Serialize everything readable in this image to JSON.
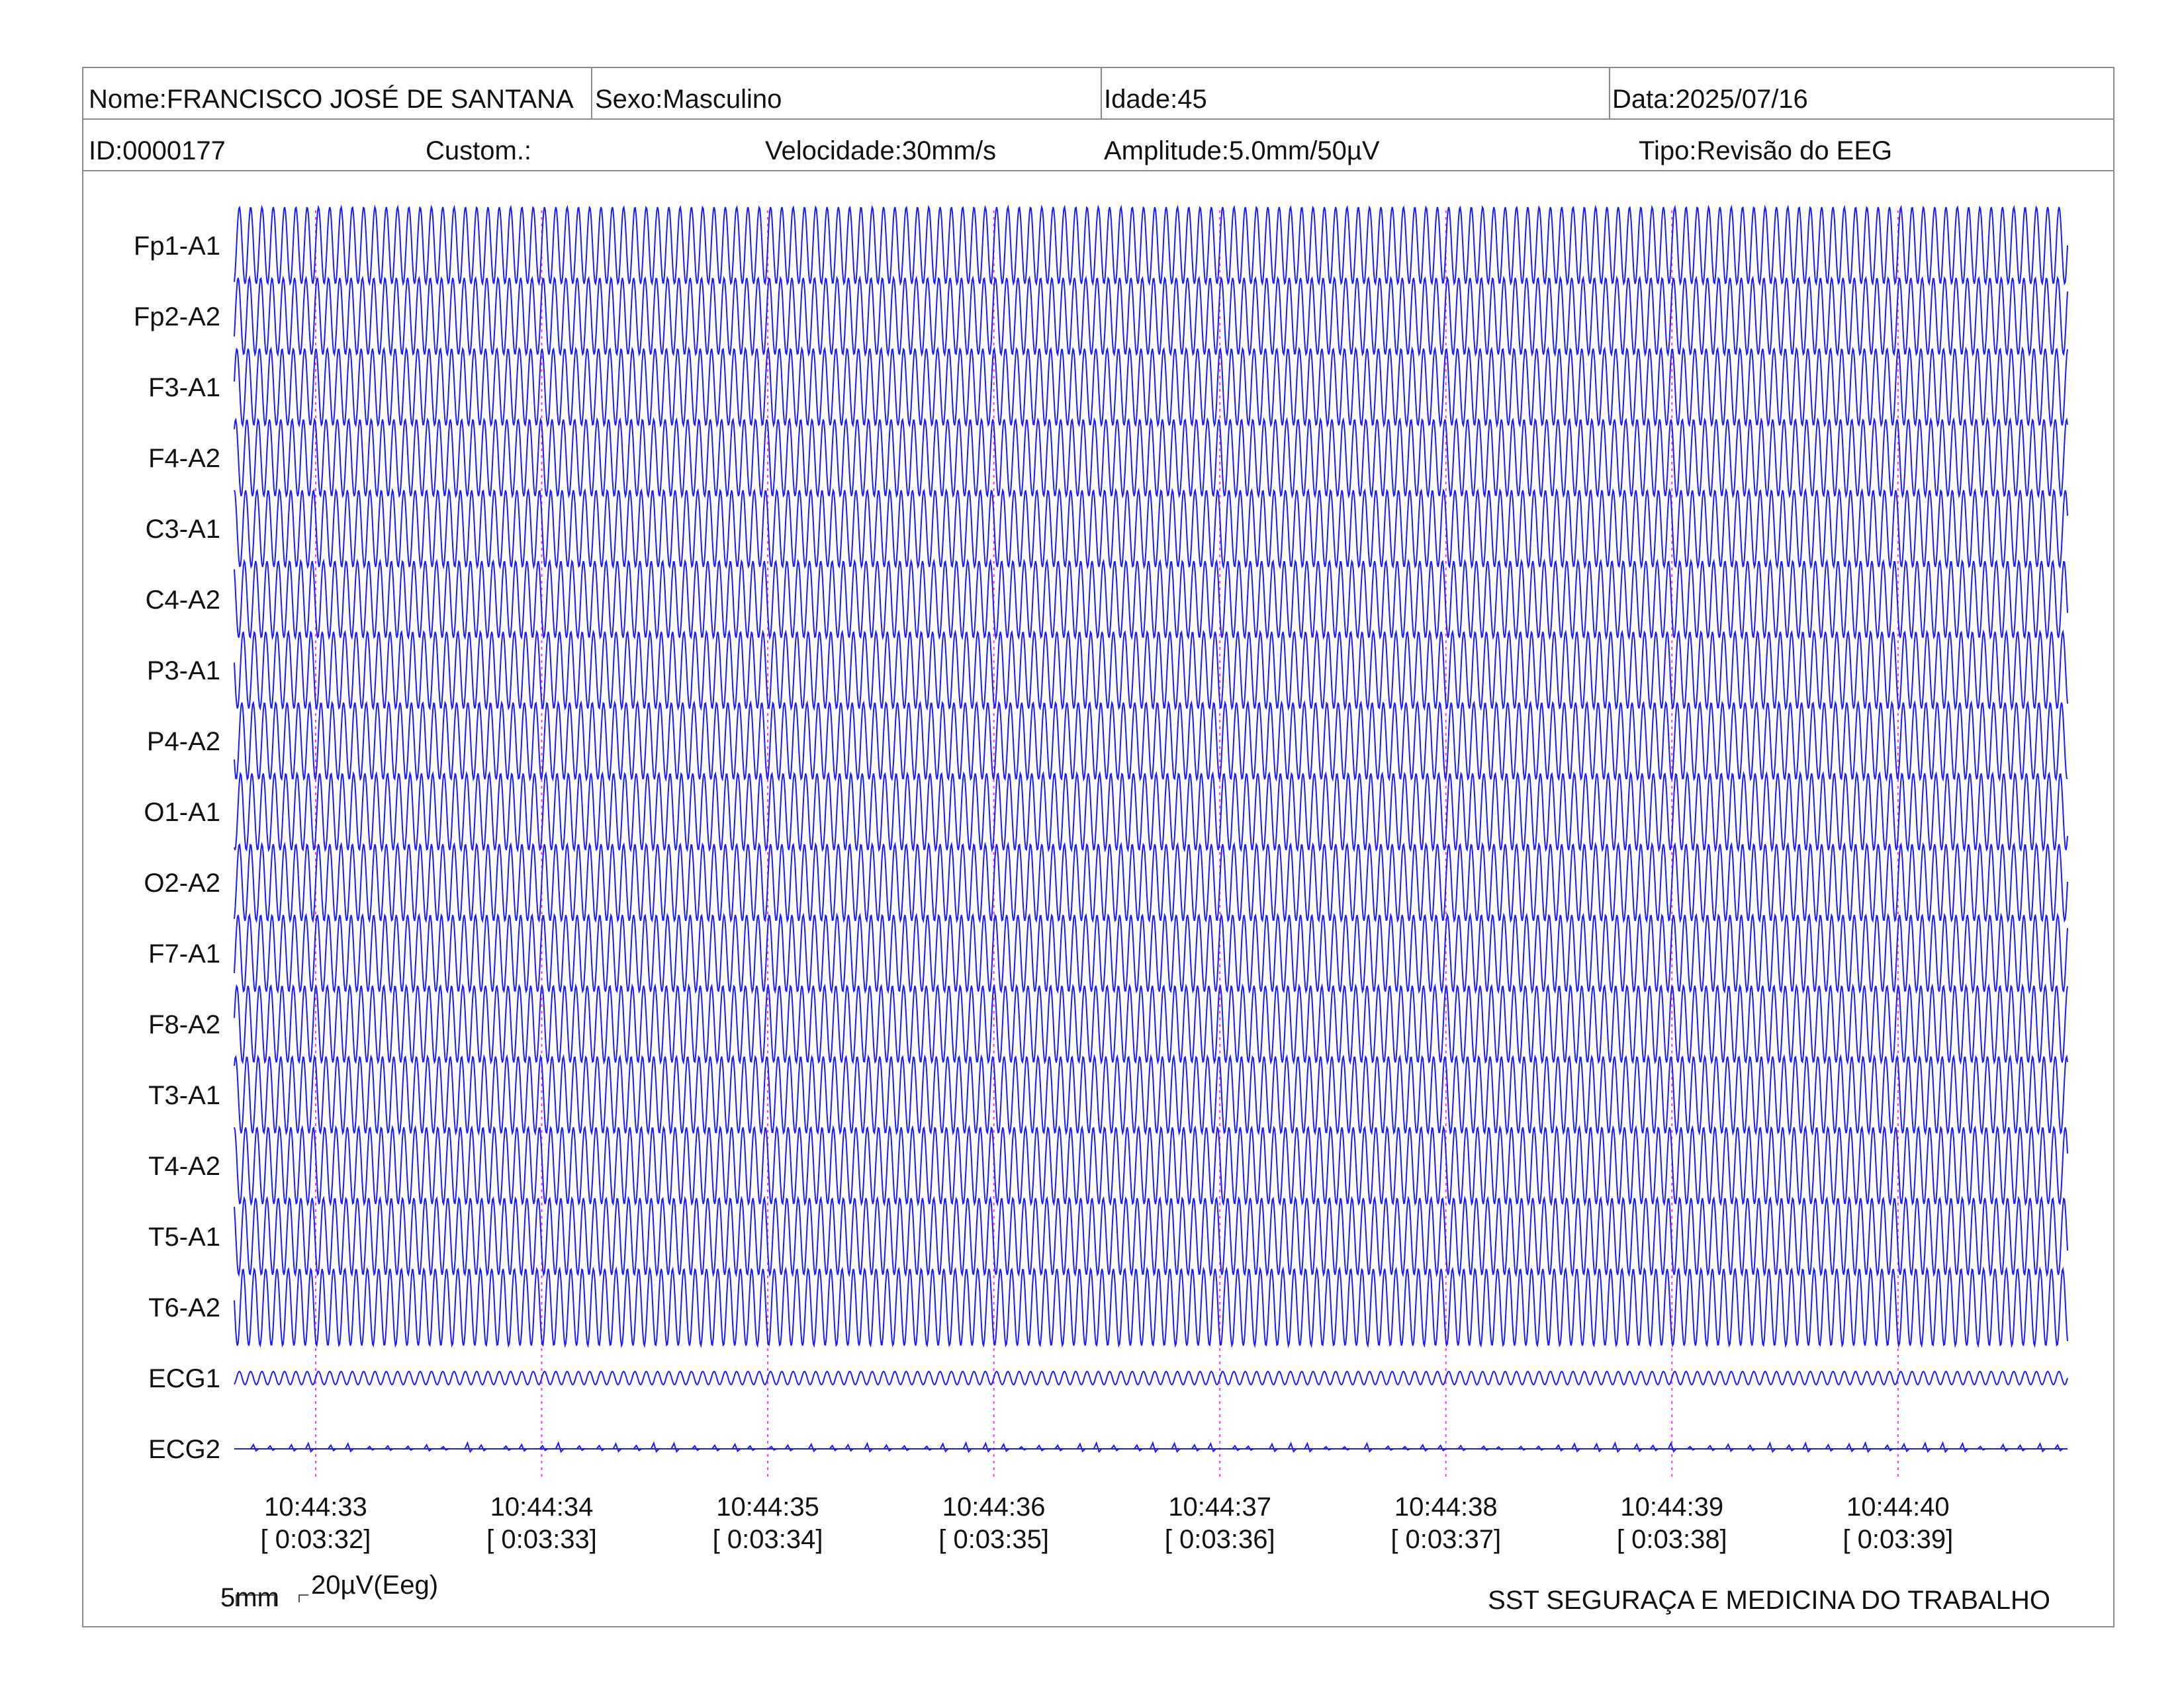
{
  "header": {
    "nome": "Nome:FRANCISCO JOSÉ DE SANTANA",
    "sexo": "Sexo:Masculino",
    "idade": "Idade:45",
    "data": "Data:2025/07/16",
    "id": "ID:0000177",
    "custom": "Custom.:",
    "velocidade": "Velocidade:30mm/s",
    "amplitude": "Amplitude:5.0mm/50µV",
    "tipo": "Tipo:Revisão do EEG"
  },
  "chart_data": {
    "type": "line",
    "title": "",
    "channels": [
      "Fp1-A1",
      "Fp2-A2",
      "F3-A1",
      "F4-A2",
      "C3-A1",
      "C4-A2",
      "P3-A1",
      "P4-A2",
      "O1-A1",
      "O2-A2",
      "F7-A1",
      "F8-A2",
      "T3-A1",
      "T4-A2",
      "T5-A1",
      "T6-A2",
      "ECG1",
      "ECG2"
    ],
    "time_ticks": [
      {
        "clock": "10:44:33",
        "elapsed": "[ 0:03:32]",
        "t": 0
      },
      {
        "clock": "10:44:34",
        "elapsed": "[ 0:03:33]",
        "t": 1
      },
      {
        "clock": "10:44:35",
        "elapsed": "[ 0:03:34]",
        "t": 2
      },
      {
        "clock": "10:44:36",
        "elapsed": "[ 0:03:35]",
        "t": 3
      },
      {
        "clock": "10:44:37",
        "elapsed": "[ 0:03:36]",
        "t": 4
      },
      {
        "clock": "10:44:38",
        "elapsed": "[ 0:03:37]",
        "t": 5
      },
      {
        "clock": "10:44:39",
        "elapsed": "[ 0:03:38]",
        "t": 6
      },
      {
        "clock": "10:44:40",
        "elapsed": "[ 0:03:39]",
        "t": 7
      }
    ],
    "x_range_seconds": [
      -0.36,
      7.75
    ],
    "eeg_frequency_hz": 20,
    "ecg1_frequency_hz": 20,
    "ecg2_pattern": "flat baseline with small irregular spikes",
    "trace_color": "#1a1aff",
    "marker_color": "#ff33ff",
    "grid": false
  },
  "scale": {
    "time": "5mm",
    "amplitude": "20µV(Eeg)"
  },
  "footer": {
    "organization": "SST SEGURAÇA E MEDICINA DO TRABALHO"
  }
}
